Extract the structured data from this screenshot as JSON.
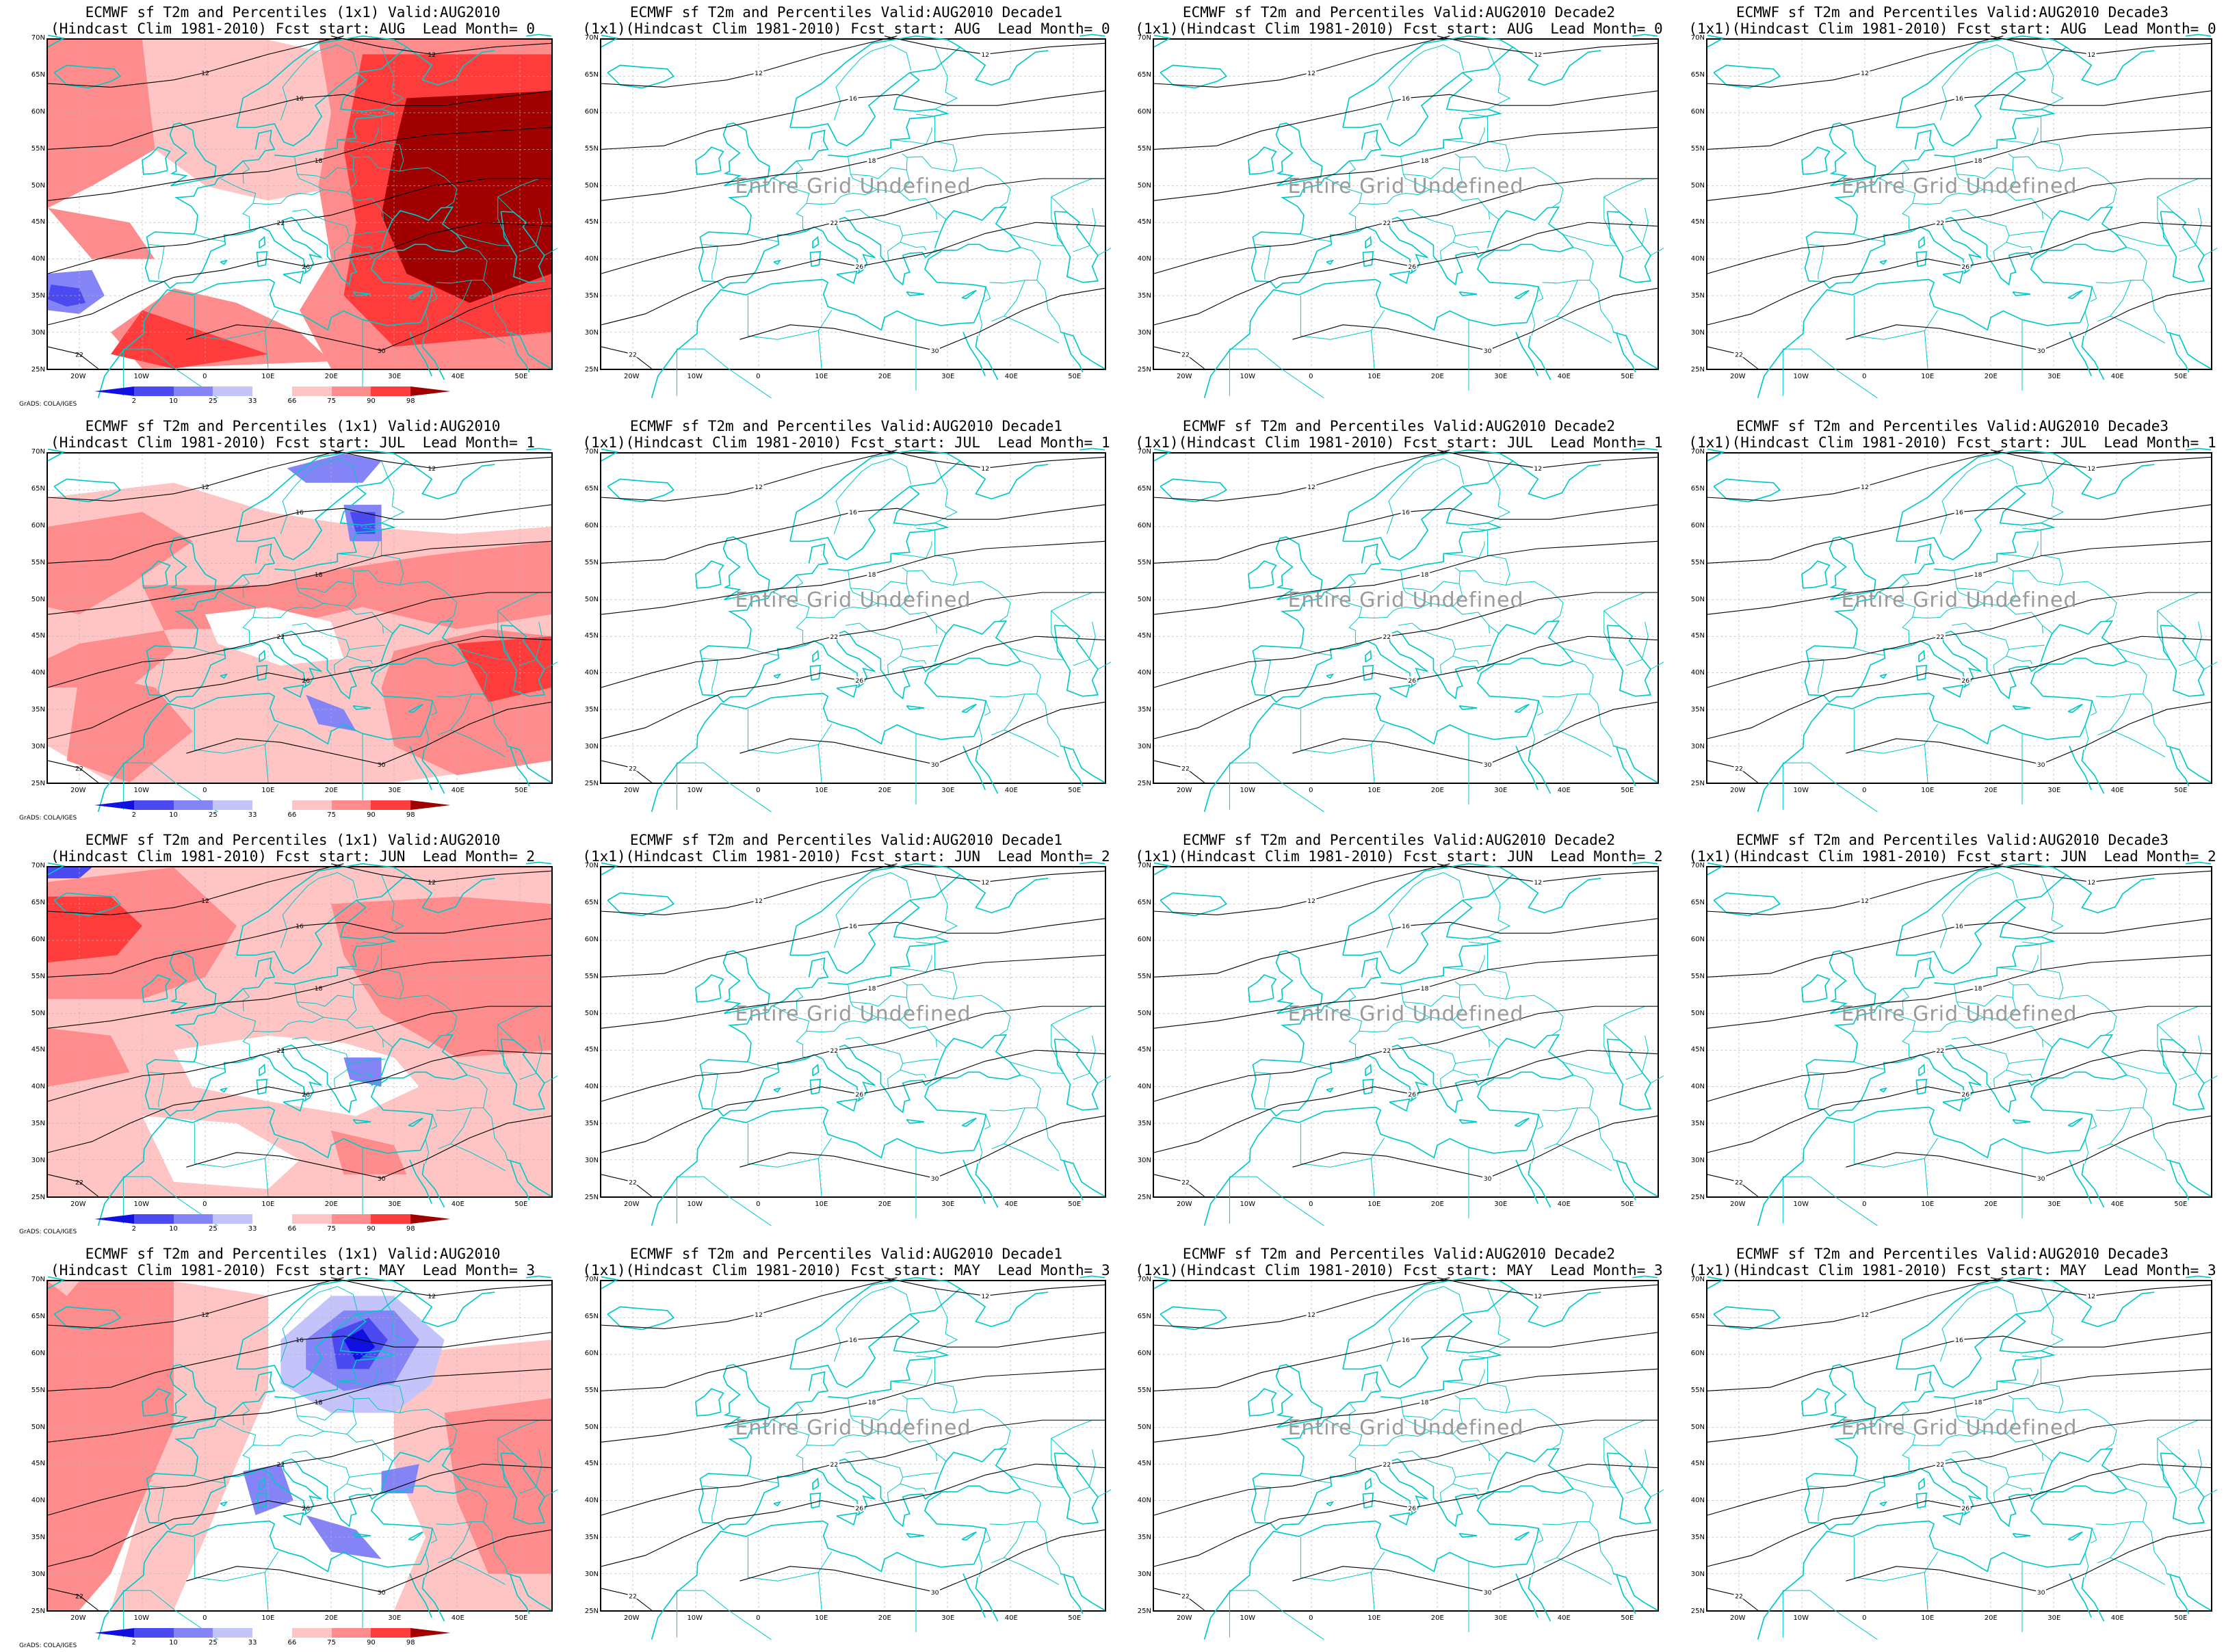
{
  "rows": [
    {
      "panels": [
        {
          "title1": "ECMWF sf T2m and Percentiles (1x1) Valid:AUG2010",
          "title2": "(Hindcast Clim 1981-2010) Fcst start: AUG  Lead Month= 0",
          "filled": true,
          "pattern": "warm-east"
        },
        {
          "title1": "ECMWF sf T2m and Percentiles Valid:AUG2010 Decade1",
          "title2": "(1x1)(Hindcast Clim 1981-2010) Fcst start: AUG  Lead Month= 0",
          "filled": false,
          "undefined": "Entire Grid Undefined"
        },
        {
          "title1": "ECMWF sf T2m and Percentiles Valid:AUG2010 Decade2",
          "title2": "(1x1)(Hindcast Clim 1981-2010) Fcst start: AUG  Lead Month= 0",
          "filled": false,
          "undefined": "Entire Grid Undefined"
        },
        {
          "title1": "ECMWF sf T2m and Percentiles Valid:AUG2010 Decade3",
          "title2": "(1x1)(Hindcast Clim 1981-2010) Fcst start: AUG  Lead Month= 0",
          "filled": false,
          "undefined": "Entire Grid Undefined"
        }
      ]
    },
    {
      "panels": [
        {
          "title1": "ECMWF sf T2m and Percentiles (1x1) Valid:AUG2010",
          "title2": "(Hindcast Clim 1981-2010) Fcst start: JUL  Lead Month= 1",
          "filled": true,
          "pattern": "warm-belt"
        },
        {
          "title1": "ECMWF sf T2m and Percentiles Valid:AUG2010 Decade1",
          "title2": "(1x1)(Hindcast Clim 1981-2010) Fcst start: JUL  Lead Month= 1",
          "filled": false,
          "undefined": "Entire Grid Undefined"
        },
        {
          "title1": "ECMWF sf T2m and Percentiles Valid:AUG2010 Decade2",
          "title2": "(1x1)(Hindcast Clim 1981-2010) Fcst start: JUL  Lead Month= 1",
          "filled": false,
          "undefined": "Entire Grid Undefined"
        },
        {
          "title1": "ECMWF sf T2m and Percentiles Valid:AUG2010 Decade3",
          "title2": "(1x1)(Hindcast Clim 1981-2010) Fcst start: JUL  Lead Month= 1",
          "filled": false,
          "undefined": "Entire Grid Undefined"
        }
      ]
    },
    {
      "panels": [
        {
          "title1": "ECMWF sf T2m and Percentiles (1x1) Valid:AUG2010",
          "title2": "(Hindcast Clim 1981-2010) Fcst start: JUN  Lead Month= 2",
          "filled": true,
          "pattern": "warm-west"
        },
        {
          "title1": "ECMWF sf T2m and Percentiles Valid:AUG2010 Decade1",
          "title2": "(1x1)(Hindcast Clim 1981-2010) Fcst start: JUN  Lead Month= 2",
          "filled": false,
          "undefined": "Entire Grid Undefined"
        },
        {
          "title1": "ECMWF sf T2m and Percentiles Valid:AUG2010 Decade2",
          "title2": "(1x1)(Hindcast Clim 1981-2010) Fcst start: JUN  Lead Month= 2",
          "filled": false,
          "undefined": "Entire Grid Undefined"
        },
        {
          "title1": "ECMWF sf T2m and Percentiles Valid:AUG2010 Decade3",
          "title2": "(1x1)(Hindcast Clim 1981-2010) Fcst start: JUN  Lead Month= 2",
          "filled": false,
          "undefined": "Entire Grid Undefined"
        }
      ]
    },
    {
      "panels": [
        {
          "title1": "ECMWF sf T2m and Percentiles (1x1) Valid:AUG2010",
          "title2": "(Hindcast Clim 1981-2010) Fcst start: MAY  Lead Month= 3",
          "filled": true,
          "pattern": "cold-north"
        },
        {
          "title1": "ECMWF sf T2m and Percentiles Valid:AUG2010 Decade1",
          "title2": "(1x1)(Hindcast Clim 1981-2010) Fcst start: MAY  Lead Month= 3",
          "filled": false,
          "undefined": "Entire Grid Undefined"
        },
        {
          "title1": "ECMWF sf T2m and Percentiles Valid:AUG2010 Decade2",
          "title2": "(1x1)(Hindcast Clim 1981-2010) Fcst start: MAY  Lead Month= 3",
          "filled": false,
          "undefined": "Entire Grid Undefined"
        },
        {
          "title1": "ECMWF sf T2m and Percentiles Valid:AUG2010 Decade3",
          "title2": "(1x1)(Hindcast Clim 1981-2010) Fcst start: MAY  Lead Month= 3",
          "filled": false,
          "undefined": "Entire Grid Undefined"
        }
      ]
    }
  ],
  "lat_labels": [
    "70N",
    "65N",
    "60N",
    "55N",
    "50N",
    "45N",
    "40N",
    "35N",
    "30N",
    "25N"
  ],
  "lon_labels": [
    "20W",
    "10W",
    "0",
    "10E",
    "20E",
    "30E",
    "40E",
    "50E"
  ],
  "colorbar": {
    "labels": [
      "2",
      "10",
      "25",
      "33",
      "66",
      "75",
      "90",
      "98"
    ],
    "colors": [
      "#1010e0",
      "#4a4af0",
      "#8484f6",
      "#c4c4fa",
      "#ffffff",
      "#ffc4c4",
      "#ff8c8c",
      "#ff3c3c",
      "#a00000"
    ]
  },
  "credit": "GrADS: COLA/IGES",
  "colors": {
    "coast": "#00c8c8",
    "contour": "#000000",
    "grid": "#b4b4b4"
  }
}
